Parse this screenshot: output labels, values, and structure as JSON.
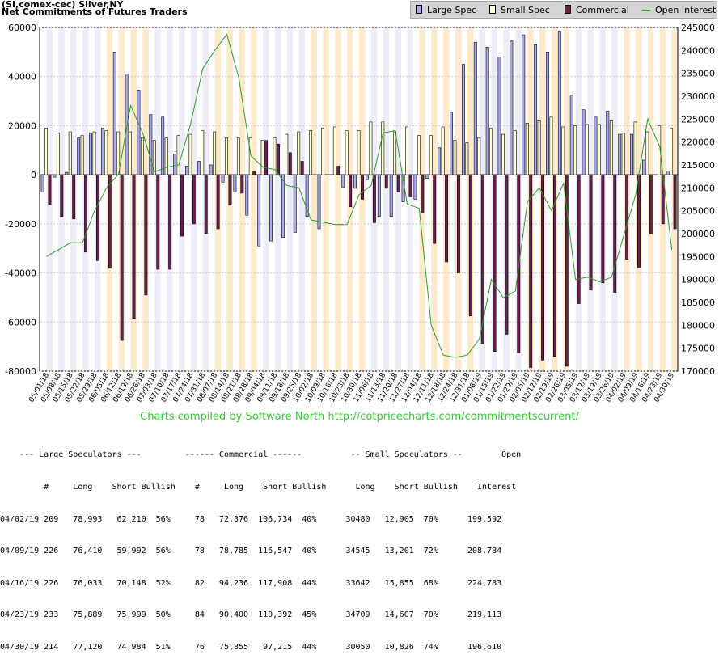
{
  "header": {
    "line1": "(SI,comex-cec) Silver,NY",
    "line2": "Net Commitments of Futures Traders"
  },
  "legend": [
    {
      "label": "Large Spec",
      "color": "#aaaaf0",
      "kind": "bar"
    },
    {
      "label": "Small Spec",
      "color": "#ffffd0",
      "kind": "bar"
    },
    {
      "label": "Commercial",
      "color": "#6a1f4e",
      "kind": "bar"
    },
    {
      "label": "Open Interest",
      "color": "#2d9a2d",
      "kind": "line"
    }
  ],
  "credit": "Charts compiled by Software North  http://cotpricecharts.com/commitmentscurrent/",
  "chart_data": {
    "type": "bar",
    "x_labels": [
      "05/01/18",
      "05/08/18",
      "05/15/18",
      "05/22/18",
      "05/29/18",
      "06/05/18",
      "06/12/18",
      "06/19/18",
      "06/26/18",
      "07/03/18",
      "07/10/18",
      "07/17/18",
      "07/24/18",
      "07/31/18",
      "08/07/18",
      "08/14/18",
      "08/21/18",
      "08/28/18",
      "09/04/18",
      "09/11/18",
      "09/18/18",
      "09/25/18",
      "10/02/18",
      "10/09/18",
      "10/16/18",
      "10/23/18",
      "10/30/18",
      "11/06/18",
      "11/13/18",
      "11/20/18",
      "11/27/18",
      "12/04/18",
      "12/11/18",
      "12/18/18",
      "12/24/18",
      "12/31/18",
      "01/08/19",
      "01/15/19",
      "01/22/19",
      "01/29/19",
      "02/05/19",
      "02/12/19",
      "02/19/19",
      "02/26/19",
      "03/05/19",
      "03/12/19",
      "03/19/19",
      "03/26/19",
      "04/02/19",
      "04/09/19",
      "04/16/19",
      "04/23/19",
      "04/30/19"
    ],
    "left_axis": {
      "min": -80000,
      "max": 60000,
      "ticks": [
        60000,
        40000,
        20000,
        0,
        -20000,
        -40000,
        -60000,
        -80000
      ]
    },
    "right_axis": {
      "min": 170000,
      "max": 245000,
      "ticks": [
        245000,
        240000,
        235000,
        230000,
        225000,
        220000,
        215000,
        210000,
        205000,
        200000,
        195000,
        190000,
        185000,
        180000,
        175000,
        170000
      ]
    },
    "series": [
      {
        "name": "Large Spec",
        "color": "#aaaaf0",
        "values": [
          -7000,
          -1000,
          1000,
          15000,
          17000,
          19000,
          50000,
          41000,
          34500,
          24500,
          23500,
          8500,
          3500,
          5500,
          4000,
          -3000,
          -7000,
          -16500,
          -29000,
          -27000,
          -25500,
          -23500,
          -17000,
          -22000,
          -200,
          -5000,
          -5500,
          -2000,
          -17000,
          -17000,
          -11000,
          -10000,
          -1500,
          11000,
          25500,
          45000,
          54000,
          52000,
          48000,
          54500,
          57000,
          53000,
          50000,
          58500,
          32500,
          26500,
          23500,
          26000,
          16500,
          16500,
          6000,
          -200,
          1500
        ]
      },
      {
        "name": "Small Spec",
        "color": "#ffffd0",
        "values": [
          19000,
          17000,
          17500,
          16000,
          17500,
          18000,
          17500,
          17500,
          15000,
          14000,
          15000,
          16000,
          16500,
          18000,
          17500,
          15000,
          15000,
          15000,
          14000,
          15000,
          16500,
          17500,
          18000,
          19000,
          19500,
          18000,
          18000,
          21500,
          21500,
          17500,
          19500,
          16000,
          16000,
          19500,
          14000,
          13000,
          15000,
          19000,
          16500,
          18000,
          21000,
          22000,
          23500,
          19500,
          20000,
          20500,
          20500,
          22000,
          17000,
          21500,
          17500,
          20000,
          19000
        ]
      },
      {
        "name": "Commercial",
        "color": "#6a1f4e",
        "values": [
          -12000,
          -17000,
          -18000,
          -31500,
          -35000,
          -38000,
          -67500,
          -58500,
          -49000,
          -38500,
          -38500,
          -25000,
          -20000,
          -24000,
          -22000,
          -12000,
          -7500,
          1500,
          14000,
          12500,
          9000,
          5500,
          0,
          0,
          3500,
          -13000,
          -10000,
          -19500,
          -5500,
          -7000,
          -9000,
          -15500,
          -28000,
          -35500,
          -40000,
          -57500,
          -69000,
          -72000,
          -65000,
          -72500,
          -78500,
          -75500,
          -74000,
          -78000,
          -52500,
          -47000,
          -44000,
          -48000,
          -34500,
          -38000,
          -24000,
          -20000,
          -22000
        ]
      },
      {
        "name": "Open Interest",
        "color": "#2d9a2d",
        "values": [
          195000,
          196500,
          198000,
          198000,
          205000,
          210000,
          213000,
          228000,
          222000,
          213500,
          214500,
          215000,
          224000,
          236000,
          240000,
          243500,
          234000,
          217000,
          214500,
          214000,
          210500,
          210000,
          203000,
          202500,
          202000,
          202000,
          208500,
          210500,
          222000,
          222500,
          206500,
          205500,
          180000,
          173500,
          173000,
          173500,
          177000,
          190000,
          186000,
          187500,
          207000,
          210000,
          205000,
          211000,
          190000,
          190500,
          189500,
          190500,
          199500,
          208500,
          225000,
          219000,
          196500
        ]
      }
    ]
  },
  "table": {
    "group_headers": "    --- Large Speculators ---         ------ Commercial ------          -- Small Speculators --        Open",
    "col_headers": "         #     Long    Short Bullish    #     Long    Short Bullish      Long    Short Bullish    Interest",
    "rows": [
      "04/02/19 209   78,993   62,210  56%     78   72,376  106,734  40%      30480   12,905  70%      199,592",
      "04/09/19 226   76,410   59,992  56%     78   78,785  116,547  40%      34545   13,201  72%      208,784",
      "04/16/19 226   76,033   70,148  52%     82   94,236  117,908  44%      33642   15,855  68%      224,783",
      "04/23/19 233   75,889   75,999  50%     84   90,400  110,392  45%      34709   14,607  70%      219,113",
      "04/30/19 214   77,120   74,984  51%     76   75,855   97,215  44%      30050   10,826  74%      196,610"
    ]
  }
}
